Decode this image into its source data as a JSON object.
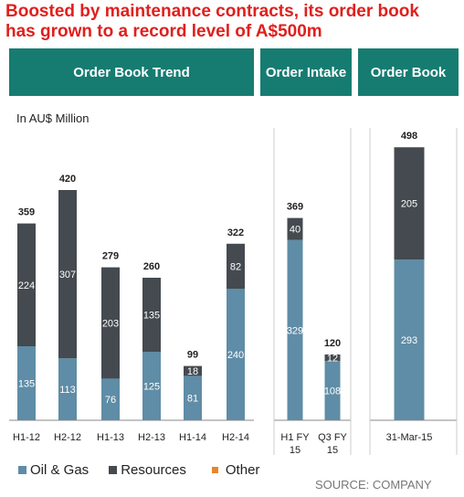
{
  "headline": {
    "line1": "Boosted by maintenance contracts, its order book",
    "line2": "has grown to a record level of A$500m"
  },
  "headers": {
    "trend": "Order Book Trend",
    "intake": "Order Intake",
    "book": "Order Book"
  },
  "unit_label": "In AU$ Million",
  "colors": {
    "oil_gas": "#5f8ca6",
    "resources": "#444a4f",
    "other": "#e8852b",
    "header_bg": "#167c72",
    "headline": "#e0201d"
  },
  "legend": [
    {
      "name": "Oil & Gas",
      "color": "#5f8ca6"
    },
    {
      "name": "Resources",
      "color": "#444a4f"
    },
    {
      "name": "Other",
      "color": "#e8852b"
    }
  ],
  "source": "SOURCE: COMPANY",
  "chart_data": [
    {
      "type": "bar",
      "stacked": true,
      "title": "Order Book Trend",
      "ylabel": "In AU$ Million",
      "categories": [
        "H1-12",
        "H2-12",
        "H1-13",
        "H2-13",
        "H1-14",
        "H2-14"
      ],
      "series": [
        {
          "name": "Oil & Gas",
          "values": [
            135,
            113,
            76,
            125,
            81,
            240
          ]
        },
        {
          "name": "Resources",
          "values": [
            224,
            307,
            203,
            135,
            18,
            82
          ]
        }
      ],
      "totals": [
        359,
        420,
        279,
        260,
        99,
        322
      ]
    },
    {
      "type": "bar",
      "stacked": true,
      "title": "Order Intake",
      "categories": [
        [
          "H1 FY",
          "15"
        ],
        [
          "Q3 FY",
          "15"
        ]
      ],
      "series": [
        {
          "name": "Oil & Gas",
          "values": [
            329,
            108
          ]
        },
        {
          "name": "Resources",
          "values": [
            40,
            12
          ]
        }
      ],
      "totals": [
        369,
        120
      ]
    },
    {
      "type": "bar",
      "stacked": true,
      "title": "Order Book",
      "categories": [
        "31-Mar-15"
      ],
      "series": [
        {
          "name": "Oil & Gas",
          "values": [
            293
          ]
        },
        {
          "name": "Resources",
          "values": [
            205
          ]
        }
      ],
      "totals": [
        498
      ]
    }
  ]
}
